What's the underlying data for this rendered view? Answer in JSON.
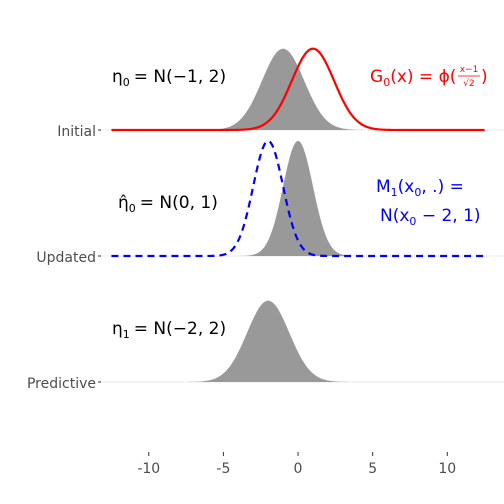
{
  "chart_data": {
    "type": "ridgeline",
    "x_ticks": [
      -10,
      -5,
      0,
      5,
      10
    ],
    "xlim": [
      -13.2,
      13.8
    ],
    "rows": [
      {
        "label": "Initial",
        "density": {
          "mean": -1,
          "sd": 1.4142,
          "fill": "#999999"
        },
        "density_label": {
          "symbol": "η",
          "sub": "0",
          "rest": "= N(−1, 2)"
        },
        "curve": {
          "name": "G0(x)",
          "mean": 1,
          "sd": 1.4142,
          "color": "#ff0000",
          "dash": "solid",
          "x_from": -12.5,
          "x_to": 12.5
        },
        "curve_label": {
          "lines": [
            "G",
            "0",
            "(x) = ϕ(",
            "x−1",
            "√2",
            ")"
          ],
          "color": "#ff0000"
        }
      },
      {
        "label": "Updated",
        "density": {
          "mean": 0,
          "sd": 1,
          "fill": "#999999"
        },
        "density_label": {
          "symbol": "η̂",
          "sub": "0",
          "rest": "= N(0, 1)"
        },
        "curve": {
          "name": "M1(x0, .)",
          "mean": -2,
          "sd": 1,
          "color": "#0000ff",
          "dash": "dashed",
          "x_from": -12.5,
          "x_to": 12.5
        },
        "curve_label": {
          "line1_main": "M",
          "line1_sub": "1",
          "line1_rest": "(x",
          "line1_sub2": "0",
          "line1_end": ", .) =",
          "line2_start": "N(x",
          "line2_sub": "0",
          "line2_end": " − 2, 1)",
          "color": "#0000ff"
        }
      },
      {
        "label": "Predictive",
        "density": {
          "mean": -2,
          "sd": 1.4142,
          "fill": "#999999"
        },
        "density_label": {
          "symbol": "η",
          "sub": "1",
          "rest": "= N(−2, 2)"
        }
      }
    ]
  }
}
